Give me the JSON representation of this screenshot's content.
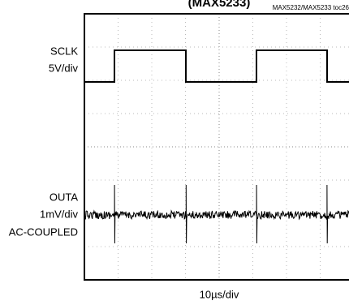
{
  "header": {
    "title": "(MAX5233)",
    "code": "MAX5232/MAX5233 toc26"
  },
  "labels": {
    "ch1": [
      "SCLK",
      "5V/div"
    ],
    "ch2": [
      "OUTA",
      "1mV/div",
      "AC-COUPLED"
    ],
    "x_scale": "10µs/div"
  }
}
